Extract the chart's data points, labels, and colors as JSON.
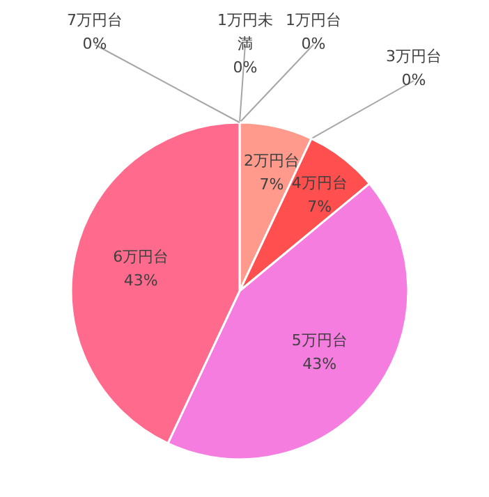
{
  "chart_data": {
    "type": "pie",
    "categories": [
      "1万円未満",
      "1万円台",
      "2万円台",
      "3万円台",
      "4万円台",
      "5万円台",
      "6万円台",
      "7万円台"
    ],
    "values": [
      0,
      0,
      7,
      0,
      7,
      43,
      43,
      0
    ],
    "colors": [
      "#4f81bd",
      "#c0504d",
      "#ff9a8c",
      "#8064a2",
      "#ff4f4f",
      "#f47ddf",
      "#ff6a8d",
      "#4bacc6"
    ],
    "value_labels": [
      "0%",
      "0%",
      "7%",
      "0%",
      "7%",
      "43%",
      "43%",
      "0%"
    ]
  }
}
